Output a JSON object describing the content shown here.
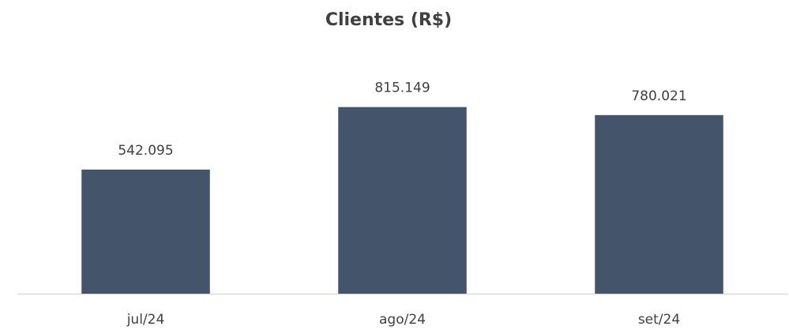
{
  "chart_data": {
    "type": "bar",
    "title": "Clientes (R$)",
    "categories": [
      "jul/24",
      "ago/24",
      "set/24"
    ],
    "values": [
      542095,
      815149,
      780021
    ],
    "value_labels": [
      "542.095",
      "815.149",
      "780.021"
    ],
    "color": "#44546a",
    "ylim": [
      0,
      900000
    ]
  }
}
